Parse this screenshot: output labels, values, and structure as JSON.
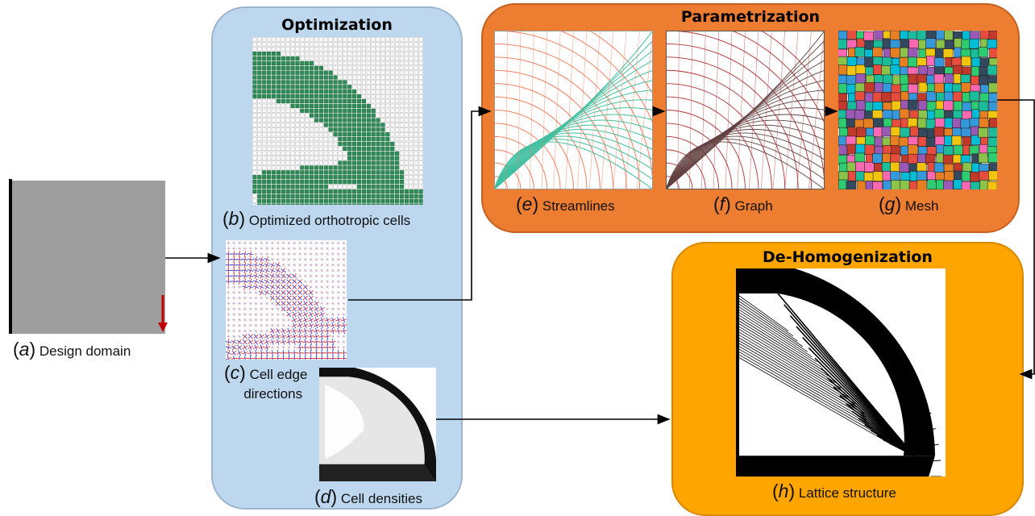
{
  "panels": {
    "optimization": {
      "title": "Optimization"
    },
    "parametrization": {
      "title": "Parametrization"
    },
    "dehomogenization": {
      "title": "De-Homogenization"
    }
  },
  "captions": {
    "a": {
      "letter": "a",
      "text": "Design domain"
    },
    "b": {
      "letter": "b",
      "text": "Optimized orthotropic cells"
    },
    "c": {
      "letter": "c",
      "line1": "Cell edge",
      "line2": "directions"
    },
    "d": {
      "letter": "d",
      "text": "Cell densities"
    },
    "e": {
      "letter": "e",
      "text": "Streamlines"
    },
    "f": {
      "letter": "f",
      "text": "Graph"
    },
    "g": {
      "letter": "g",
      "text": "Mesh"
    },
    "h": {
      "letter": "h",
      "text": "Lattice structure"
    }
  },
  "colors": {
    "optimization_bg": "#bdd7ee",
    "parametrization_bg": "#ed7d31",
    "dehomogenization_bg": "#ffa500",
    "domain_gray": "#9e9e9e",
    "load_arrow": "#c00000",
    "orthotropic_green": "#2e8b57",
    "streamline_orange": "#f08060",
    "streamline_teal": "#40c0a0",
    "graph_red": "#b03030",
    "directions_red": "#e03030",
    "directions_blue": "#4040d0"
  }
}
